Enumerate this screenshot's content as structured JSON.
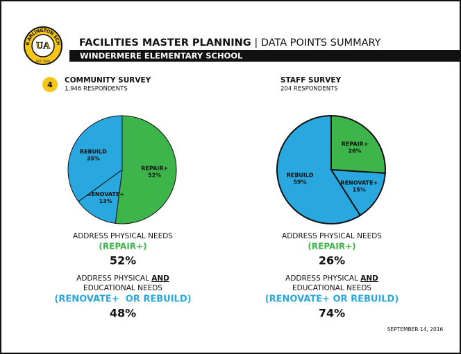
{
  "header": {
    "title_bold": "FACILITIES MASTER PLANNING",
    "separator": "|",
    "title_rest": "DATA POINTS SUMMARY",
    "school": "WINDERMERE ELEMENTARY SCHOOL",
    "logo_ring": "UPPER ARLINGTON SCHOOLS",
    "logo_est": "EST. 1918",
    "logo_mark": "UA"
  },
  "section_number": "4",
  "chart_data": [
    {
      "type": "pie",
      "title": "COMMUNITY SURVEY",
      "subtitle": "1,946 RESPONDENTS",
      "categories": [
        "REPAIR+",
        "RENOVATE+",
        "REBUILD"
      ],
      "values": [
        52,
        13,
        35
      ],
      "value_labels": [
        "52%",
        "13%",
        "35%"
      ],
      "colors": [
        "#3db54a",
        "#29a8e0",
        "#29a8e0"
      ]
    },
    {
      "type": "pie",
      "title": "STAFF SURVEY",
      "subtitle": "204 RESPONDENTS",
      "categories": [
        "REPAIR+",
        "RENOVATE+",
        "REBUILD"
      ],
      "values": [
        26,
        15,
        59
      ],
      "value_labels": [
        "26%",
        "15%",
        "59%"
      ],
      "colors": [
        "#3db54a",
        "#29a8e0",
        "#29a8e0"
      ]
    }
  ],
  "summaries": [
    {
      "line1": "ADDRESS PHYSICAL NEEDS",
      "option1": "(REPAIR+)",
      "value1": "52%",
      "line2a": "ADDRESS PHYSICAL ",
      "line2b": "AND",
      "line3": "EDUCATIONAL NEEDS",
      "option2": "(RENOVATE+  OR REBUILD)",
      "value2": "48%"
    },
    {
      "line1": "ADDRESS PHYSICAL NEEDS",
      "option1": "(REPAIR+)",
      "value1": "26%",
      "line2a": "ADDRESS PHYSICAL ",
      "line2b": "AND",
      "line3": "EDUCATIONAL NEEDS",
      "option2": "(RENOVATE+ OR REBUILD)",
      "value2": "74%"
    }
  ],
  "date": "SEPTEMBER 14, 2016"
}
